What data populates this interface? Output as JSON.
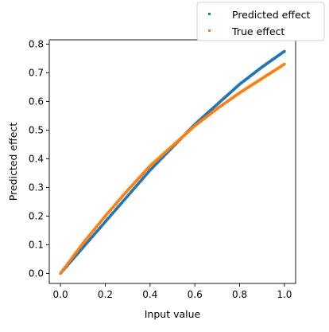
{
  "chart_data": {
    "type": "scatter",
    "xlabel": "Input value",
    "ylabel": "Predicted effect",
    "xlim": [
      -0.05,
      1.05
    ],
    "ylim": [
      -0.035,
      0.815
    ],
    "xticks": [
      0.0,
      0.2,
      0.4,
      0.6,
      0.8,
      1.0
    ],
    "xtick_labels": [
      "0.0",
      "0.2",
      "0.4",
      "0.6",
      "0.8",
      "1.0"
    ],
    "yticks": [
      0.0,
      0.1,
      0.2,
      0.3,
      0.4,
      0.5,
      0.6,
      0.7,
      0.8
    ],
    "ytick_labels": [
      "0.0",
      "0.1",
      "0.2",
      "0.3",
      "0.4",
      "0.5",
      "0.6",
      "0.7",
      "0.8"
    ],
    "grid": false,
    "legend_position": "top-right, outside plot",
    "series": [
      {
        "name": "Predicted effect",
        "color": "#1f77b4",
        "x": [
          0.0,
          0.1,
          0.2,
          0.3,
          0.4,
          0.5,
          0.6,
          0.7,
          0.8,
          0.9,
          1.0
        ],
        "y": [
          0.0,
          0.09,
          0.18,
          0.27,
          0.36,
          0.44,
          0.52,
          0.59,
          0.66,
          0.72,
          0.775
        ]
      },
      {
        "name": "True effect",
        "color": "#ff7f0e",
        "x": [
          0.0,
          0.1,
          0.2,
          0.3,
          0.4,
          0.5,
          0.6,
          0.7,
          0.8,
          0.9,
          1.0
        ],
        "y": [
          0.0,
          0.105,
          0.2,
          0.29,
          0.375,
          0.445,
          0.515,
          0.575,
          0.63,
          0.68,
          0.73
        ]
      }
    ]
  }
}
